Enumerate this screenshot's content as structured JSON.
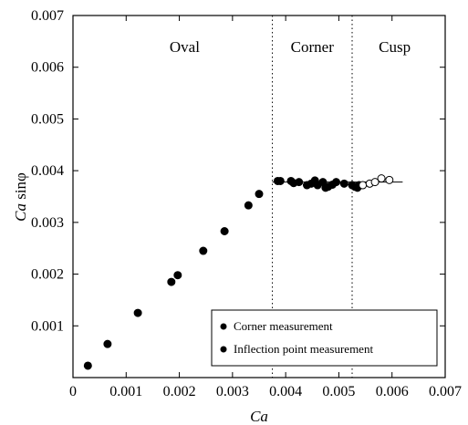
{
  "chart_data": {
    "type": "scatter",
    "xlabel": "Ca",
    "ylabel_italic": "Ca",
    "ylabel_rest": " sinφ",
    "xlim": [
      0,
      0.007
    ],
    "ylim": [
      0,
      0.007
    ],
    "x_ticks": [
      {
        "value": 0,
        "label": "0"
      },
      {
        "value": 0.001,
        "label": "0.001"
      },
      {
        "value": 0.002,
        "label": "0.002"
      },
      {
        "value": 0.003,
        "label": "0.003"
      },
      {
        "value": 0.004,
        "label": "0.004"
      },
      {
        "value": 0.005,
        "label": "0.005"
      },
      {
        "value": 0.006,
        "label": "0.006"
      },
      {
        "value": 0.007,
        "label": "0.007"
      }
    ],
    "y_ticks": [
      {
        "value": 0.001,
        "label": "0.001"
      },
      {
        "value": 0.002,
        "label": "0.002"
      },
      {
        "value": 0.003,
        "label": "0.003"
      },
      {
        "value": 0.004,
        "label": "0.004"
      },
      {
        "value": 0.005,
        "label": "0.005"
      },
      {
        "value": 0.006,
        "label": "0.006"
      },
      {
        "value": 0.007,
        "label": "0.007"
      }
    ],
    "regions": [
      {
        "label": "Oval",
        "x": 0.0021
      },
      {
        "label": "Corner",
        "x": 0.0045
      },
      {
        "label": "Cusp",
        "x": 0.00605
      }
    ],
    "boundaries": [
      0.00375,
      0.00525
    ],
    "fit_line": {
      "x": [
        0.00375,
        0.0062
      ],
      "y": [
        0.00378,
        0.00378
      ]
    },
    "legend": {
      "position": "bottom-right",
      "entries": [
        "Corner measurement",
        "Inflection point measurement"
      ]
    },
    "series": [
      {
        "name": "Inflection point measurement",
        "marker": "filled-circle",
        "points": [
          [
            0.00028,
            0.00023
          ],
          [
            0.00065,
            0.00065
          ],
          [
            0.00122,
            0.00125
          ],
          [
            0.00185,
            0.00185
          ],
          [
            0.00197,
            0.00198
          ],
          [
            0.00245,
            0.00245
          ],
          [
            0.00285,
            0.00283
          ],
          [
            0.0033,
            0.00333
          ],
          [
            0.0035,
            0.00355
          ],
          [
            0.00385,
            0.0038
          ],
          [
            0.0039,
            0.0038
          ],
          [
            0.0041,
            0.0038
          ],
          [
            0.00415,
            0.00376
          ],
          [
            0.00425,
            0.00378
          ],
          [
            0.0044,
            0.00372
          ],
          [
            0.00448,
            0.00375
          ],
          [
            0.00455,
            0.00381
          ],
          [
            0.0046,
            0.00372
          ],
          [
            0.0047,
            0.00378
          ],
          [
            0.00475,
            0.00367
          ],
          [
            0.0048,
            0.00369
          ],
          [
            0.00488,
            0.00373
          ],
          [
            0.00495,
            0.00378
          ],
          [
            0.0051,
            0.00375
          ],
          [
            0.00525,
            0.00372
          ],
          [
            0.0053,
            0.00369
          ],
          [
            0.00535,
            0.00367
          ],
          [
            0.00538,
            0.00372
          ]
        ]
      },
      {
        "name": "Corner measurement",
        "marker": "open-circle",
        "points": [
          [
            0.00545,
            0.00372
          ],
          [
            0.00558,
            0.00375
          ],
          [
            0.00568,
            0.00378
          ],
          [
            0.0058,
            0.00385
          ],
          [
            0.00595,
            0.00382
          ]
        ]
      }
    ]
  }
}
